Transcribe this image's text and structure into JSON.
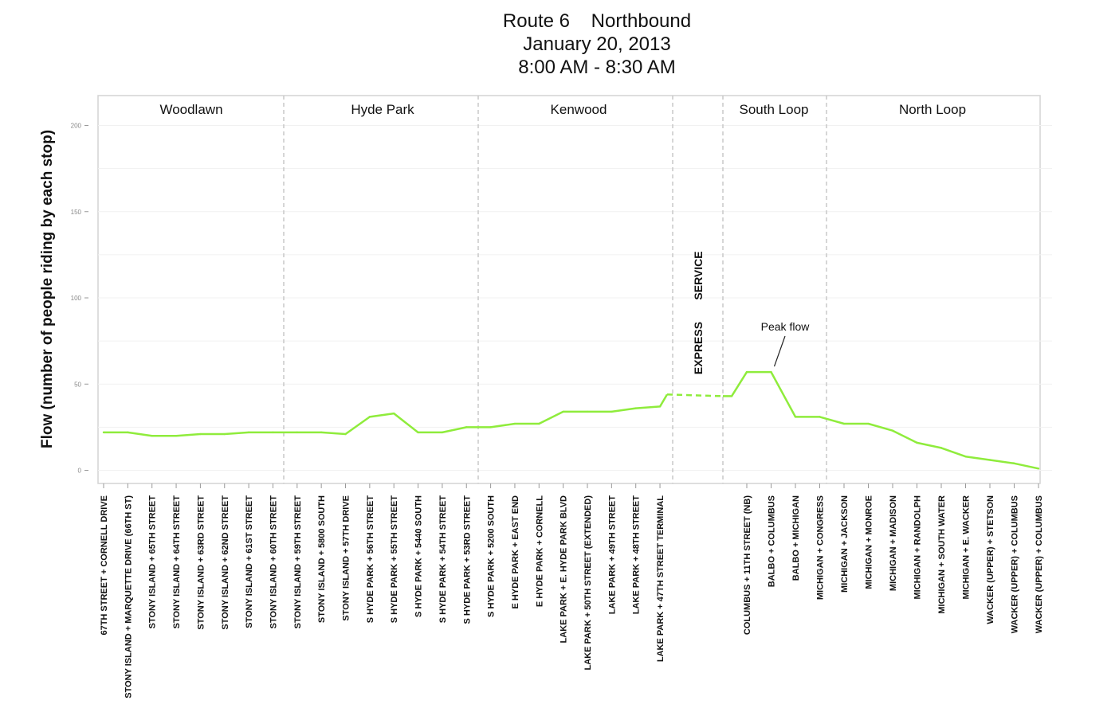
{
  "chart_data": {
    "type": "line",
    "title_lines": [
      "Route 6    Northbound",
      "January 20, 2013",
      "8:00 AM - 8:30 AM"
    ],
    "ylabel": "Flow (number of people riding by each stop)",
    "xlabel": "",
    "ylim": [
      0,
      210
    ],
    "yticks": [
      0,
      50,
      100,
      150,
      200
    ],
    "grid": true,
    "series_color": "#8fec3c",
    "categories": [
      "67TH STREET + CORNELL DRIVE",
      "STONY ISLAND + MARQUETTE DRIVE (66TH ST)",
      "STONY ISLAND + 65TH STREET",
      "STONY ISLAND + 64TH STREET",
      "STONY ISLAND + 63RD STREET",
      "STONY ISLAND + 62ND STREET",
      "STONY ISLAND + 61ST STREET",
      "STONY ISLAND + 60TH STREET",
      "STONY ISLAND + 59TH STREET",
      "STONY ISLAND + 5800 SOUTH",
      "STONY ISLAND + 57TH DRIVE",
      "S HYDE PARK + 56TH STREET",
      "S HYDE PARK + 55TH STREET",
      "S HYDE PARK + 5440 SOUTH",
      "S HYDE PARK + 54TH STREET",
      "S HYDE PARK + 53RD STREET",
      "S HYDE PARK + 5200 SOUTH",
      "E HYDE PARK + EAST END",
      "E HYDE PARK + CORNELL",
      "LAKE PARK + E. HYDE PARK BLVD",
      "LAKE PARK + 50TH STREET (EXTENDED)",
      "LAKE PARK + 49TH STREET",
      "LAKE PARK + 48TH STREET",
      "LAKE PARK + 47TH STREET TERMINAL",
      "COLUMBUS + 11TH STREET (NB)",
      "BALBO + COLUMBUS",
      "BALBO + MICHIGAN",
      "MICHIGAN + CONGRESS",
      "MICHIGAN + JACKSON",
      "MICHIGAN + MONROE",
      "MICHIGAN + MADISON",
      "MICHIGAN + RANDOLPH",
      "MICHIGAN + SOUTH WATER",
      "MICHIGAN + E. WACKER",
      "WACKER (UPPER) + STETSON",
      "WACKER (UPPER) + COLUMBUS",
      "WACKER (UPPER) + COLUMBUS"
    ],
    "values": [
      22,
      22,
      20,
      20,
      21,
      21,
      22,
      22,
      22,
      22,
      21,
      31,
      33,
      22,
      22,
      25,
      25,
      27,
      27,
      34,
      34,
      34,
      36,
      37,
      57,
      57,
      31,
      31,
      27,
      27,
      23,
      16,
      13,
      8,
      6,
      4,
      1
    ],
    "express_segment": {
      "from_value": 44,
      "to_value": 43
    },
    "neighborhoods": [
      "Woodlawn",
      "Hyde Park",
      "Kenwood",
      "",
      "South Loop",
      "North Loop"
    ],
    "express_service_label": [
      "SERVICE",
      "EXPRESS"
    ],
    "annotations": [
      {
        "text": "Peak flow",
        "category_index": 25
      }
    ]
  }
}
